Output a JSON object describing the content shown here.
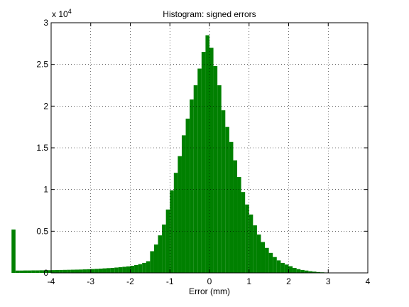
{
  "chart_data": {
    "type": "histogram",
    "title": "Histogram: signed errors",
    "x_label": "Error (mm)",
    "y_multiplier": {
      "base": "x 10",
      "exponent": "4"
    },
    "color": "#008000",
    "grid": true,
    "xlim": [
      -4,
      4
    ],
    "xticks": [
      -4,
      -3,
      -2,
      -1,
      0,
      1,
      2,
      3,
      4
    ],
    "ylim": [
      0,
      30000
    ],
    "yticks": [
      0,
      {
        "value": 5000,
        "label": "0.5"
      },
      {
        "value": 10000,
        "label": "1"
      },
      {
        "value": 15000,
        "label": "1.5"
      },
      {
        "value": 20000,
        "label": "2"
      },
      {
        "value": 25000,
        "label": "2.5"
      },
      {
        "value": 30000,
        "label": "3"
      }
    ],
    "bins": [
      -5,
      -4.9,
      -4.8,
      -4.7,
      -4.6,
      -4.5,
      -4.4,
      -4.3,
      -4.2,
      -4.1,
      -4,
      -3.9,
      -3.8,
      -3.7,
      -3.6,
      -3.5,
      -3.4,
      -3.3,
      -3.2,
      -3.1,
      -3,
      -2.9,
      -2.8,
      -2.7,
      -2.6,
      -2.5,
      -2.4,
      -2.3,
      -2.2,
      -2.1,
      -2,
      -1.9,
      -1.8,
      -1.7,
      -1.6,
      -1.5,
      -1.4,
      -1.3,
      -1.2,
      -1.1,
      -1,
      -0.9,
      -0.8,
      -0.7,
      -0.6,
      -0.5,
      -0.4,
      -0.3,
      -0.2,
      -0.1,
      0,
      0.1,
      0.2,
      0.3,
      0.4,
      0.5,
      0.6,
      0.7,
      0.8,
      0.9,
      1,
      1.1,
      1.2,
      1.3,
      1.4,
      1.5,
      1.6,
      1.7,
      1.8,
      1.9,
      2,
      2.1,
      2.2,
      2.3,
      2.4,
      2.5,
      2.6,
      2.7,
      2.8,
      2.9,
      3,
      3.1,
      3.2
    ],
    "values": [
      5200,
      280,
      280,
      290,
      290,
      300,
      300,
      310,
      310,
      320,
      330,
      340,
      350,
      360,
      370,
      380,
      390,
      400,
      420,
      440,
      460,
      480,
      510,
      540,
      570,
      600,
      640,
      680,
      730,
      780,
      850,
      940,
      1050,
      1200,
      1400,
      2600,
      3400,
      4500,
      5800,
      7600,
      9900,
      12000,
      14000,
      16500,
      18500,
      20800,
      22500,
      24500,
      26500,
      28500,
      27000,
      24800,
      22500,
      19500,
      17500,
      15700,
      13500,
      11500,
      9700,
      8200,
      7000,
      5700,
      4600,
      3700,
      3000,
      2400,
      1900,
      1500,
      1200,
      1000,
      800,
      600,
      450,
      350,
      280,
      200,
      150,
      100,
      70,
      50,
      30,
      20
    ]
  }
}
